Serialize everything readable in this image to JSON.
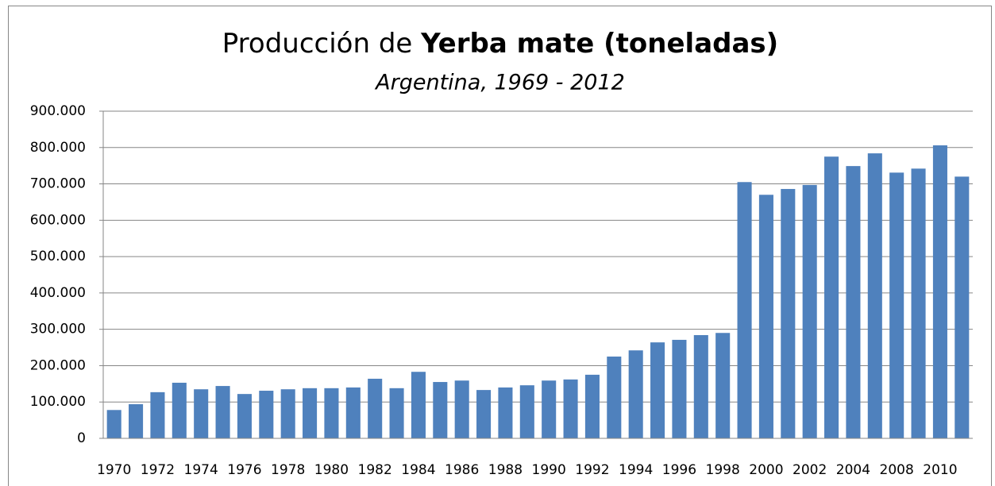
{
  "chart_data": {
    "type": "bar",
    "title": "Producción de",
    "title_bold": "Yerba mate (toneladas)",
    "subtitle": "Argentina, 1969 - 2012",
    "categories": [
      "1970",
      null,
      "1972",
      null,
      "1974",
      null,
      "1976",
      null,
      "1978",
      null,
      "1980",
      null,
      "1982",
      null,
      "1984",
      null,
      "1986",
      null,
      "1988",
      null,
      "1990",
      null,
      "1992",
      null,
      "1994",
      null,
      "1996",
      null,
      "1998",
      null,
      "2000",
      null,
      "2002",
      null,
      "2004",
      null,
      "2008",
      null,
      "2010",
      null
    ],
    "values": [
      78000,
      94000,
      127000,
      153000,
      135000,
      144000,
      122000,
      131000,
      135000,
      138000,
      138000,
      140000,
      164000,
      138000,
      183000,
      155000,
      159000,
      133000,
      140000,
      146000,
      159000,
      162000,
      175000,
      225000,
      242000,
      264000,
      271000,
      284000,
      290000,
      705000,
      670000,
      686000,
      697000,
      775000,
      749000,
      784000,
      731000,
      742000,
      806000,
      720000
    ],
    "color": "#4f81bd",
    "ylim": [
      0,
      900000
    ],
    "yticks": [
      0,
      {
        "value": 100000,
        "label": "100.000"
      },
      {
        "value": 200000,
        "label": "200.000"
      },
      {
        "value": 300000,
        "label": "300.000"
      },
      {
        "value": 400000,
        "label": "400.000"
      },
      {
        "value": 500000,
        "label": "500.000"
      },
      {
        "value": 600000,
        "label": "600.000"
      },
      {
        "value": 700000,
        "label": "700.000"
      },
      {
        "value": 800000,
        "label": "800.000"
      },
      {
        "value": 900000,
        "label": "900.000"
      }
    ],
    "grid": true
  }
}
